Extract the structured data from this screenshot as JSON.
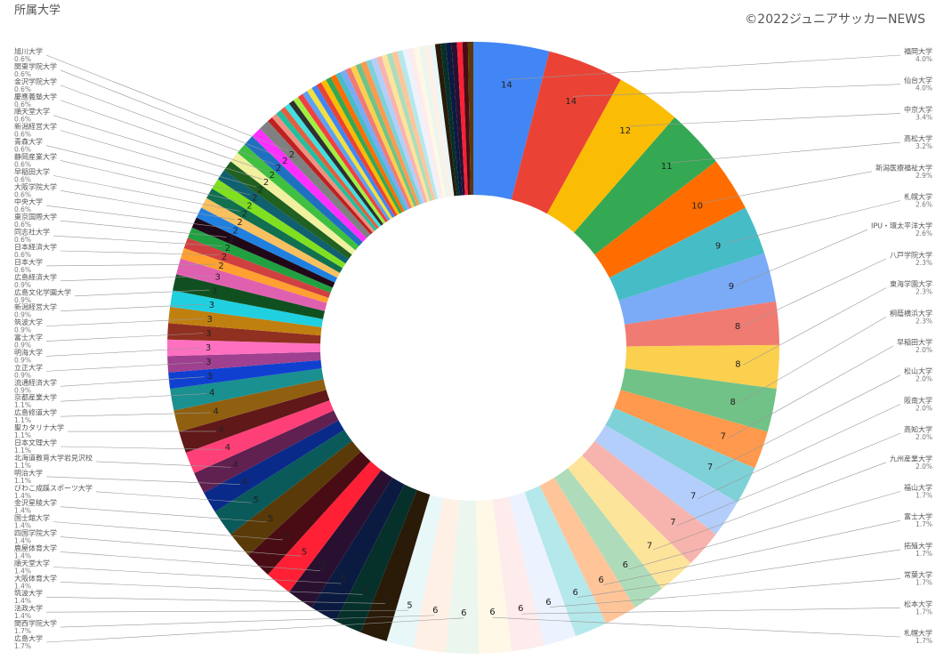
{
  "chart_data": {
    "type": "donut",
    "title": "所属大学",
    "credit": "©2022ジュニアサッカーNEWS",
    "categories": [
      "福岡大学",
      "仙台大学",
      "中京大学",
      "高松大学",
      "新潟医療福祉大学",
      "札幌大学",
      "IPU・環太平洋大学",
      "八戸学院大学",
      "東海学園大学",
      "桐蔭横浜大学",
      "早稲田大学",
      "松山大学",
      "阪南大学",
      "高知大学",
      "九州産業大学",
      "福山大学",
      "富士大学",
      "拓殖大学",
      "常葉大学",
      "松本大学",
      "札幌大学",
      "広島大学",
      "関西学院大学",
      "法政大学",
      "筑波大学",
      "大阪体育大学",
      "順天堂大学",
      "鹿屋体育大学",
      "四国学院大学",
      "国士舘大学",
      "金沢星稜大学",
      "びわこ成蹊スポーツ大学",
      "明治大学",
      "北海道教育大学岩見沢校",
      "日本文理大学",
      "聖カタリナ大学",
      "広島修道大学",
      "京都産業大学",
      "流通経済大学",
      "立正大学",
      "明海大学",
      "富士大学",
      "筑波大学",
      "新潟経営大学",
      "広島文化学園大学",
      "広島経済大学",
      "日本大学",
      "日本経済大学",
      "同志社大学",
      "東京国際大学",
      "中央大学",
      "大阪学院大学",
      "早稲田大学",
      "静岡産業大学",
      "青森大学",
      "新潟経営大学",
      "順天堂大学",
      "慶應義塾大学",
      "金沢学院大学",
      "関東学院大学",
      "旭川大学",
      null,
      null,
      null,
      null,
      null,
      null,
      null,
      null,
      null,
      null,
      null,
      null,
      null,
      null,
      null,
      null,
      null,
      null,
      null,
      null,
      null,
      null,
      null,
      null,
      null,
      null,
      null,
      null,
      null,
      null,
      null,
      null,
      null,
      null,
      null,
      null,
      null,
      null,
      null,
      null,
      null
    ],
    "values": [
      14,
      14,
      12,
      11,
      10,
      9,
      9,
      8,
      8,
      8,
      7,
      7,
      7,
      7,
      7,
      6,
      6,
      6,
      6,
      6,
      6,
      6,
      6,
      5,
      5,
      5,
      5,
      5,
      5,
      5,
      5,
      5,
      4,
      4,
      4,
      4,
      4,
      4,
      3,
      3,
      3,
      3,
      3,
      3,
      3,
      3,
      2,
      2,
      2,
      2,
      2,
      2,
      2,
      2,
      2,
      2,
      2,
      2,
      2,
      2,
      2,
      1,
      1,
      1,
      1,
      1,
      1,
      1,
      1,
      1,
      1,
      1,
      1,
      1,
      1,
      1,
      1,
      1,
      1,
      1,
      1,
      1,
      1,
      1,
      1,
      1,
      1,
      1,
      1,
      1,
      1,
      1,
      1,
      1,
      1,
      1,
      1,
      1,
      1,
      1,
      1,
      1
    ],
    "share_labels": [
      "4.0%",
      "4.0%",
      "3.4%",
      "3.2%",
      "2.9%",
      "2.6%",
      "2.6%",
      "2.3%",
      "2.3%",
      "2.3%",
      "2.0%",
      "2.0%",
      "2.0%",
      "2.0%",
      "2.0%",
      "1.7%",
      "1.7%",
      "1.7%",
      "1.7%",
      "1.7%",
      "1.7%",
      "1.7%",
      "1.7%",
      "1.4%",
      "1.4%",
      "1.4%",
      "1.4%",
      "1.4%",
      "1.4%",
      "1.4%",
      "1.4%",
      "1.4%",
      "1.1%",
      "1.1%",
      "1.1%",
      "1.1%",
      "1.1%",
      "1.1%",
      "0.9%",
      "0.9%",
      "0.9%",
      "0.9%",
      "0.9%",
      "0.9%",
      "0.9%",
      "0.9%",
      "0.6%",
      "0.6%",
      "0.6%",
      "0.6%",
      "0.6%",
      "0.6%",
      "0.6%",
      "0.6%",
      "0.6%",
      "0.6%",
      "0.6%",
      "0.6%",
      "0.6%",
      "0.6%",
      "0.6%",
      null,
      null,
      null,
      null,
      null,
      null,
      null,
      null,
      null,
      null,
      null,
      null,
      null,
      null,
      null,
      null,
      null,
      null,
      null,
      null,
      null,
      null,
      null,
      null,
      null,
      null,
      null,
      null,
      null,
      null,
      null,
      null,
      null,
      null,
      null,
      null,
      null,
      null,
      null,
      null,
      null
    ],
    "colors": [
      "#4285f4",
      "#ea4335",
      "#fbbc04",
      "#34a853",
      "#ff6d01",
      "#46bdc6",
      "#7baaf7",
      "#f07b72",
      "#fcd04f",
      "#71c287",
      "#ff994d",
      "#7ed1d7",
      "#b3cefb",
      "#f7b4ae",
      "#fde49b",
      "#aedcba",
      "#ffc599",
      "#b5e8eb",
      "#ecf2fe",
      "#fdeceb",
      "#fff8e6",
      "#ebf6ee",
      "#fff0e6",
      "#e8f7f8",
      "#2a1a08",
      "#06302a",
      "#0b1a40",
      "#2a1030",
      "#ff2035",
      "#4a0c14",
      "#5a3a08",
      "#0a5a5a",
      "#0a2a8a",
      "#602050",
      "#ff4078",
      "#601818",
      "#906010",
      "#1a9090",
      "#1040d0",
      "#a04090",
      "#ff70c0",
      "#903020",
      "#c08010",
      "#20d0e0",
      "#105020",
      "#e060b0",
      "#ffa030",
      "#d04040",
      "#20a040",
      "#200818",
      "#2080e0",
      "#f8c060",
      "#107050",
      "#80e020",
      "#106070",
      "#206020",
      "#f0f0a0",
      "#40c040",
      "#2070c0",
      "#ff30ff",
      "#808080",
      "#c02020",
      "#f09080",
      "#20c0a0",
      "#e06040",
      "#40e0e0",
      "#303030",
      "#a0f040",
      "#f04040",
      "#60a0f0",
      "#f0e040"
    ]
  }
}
